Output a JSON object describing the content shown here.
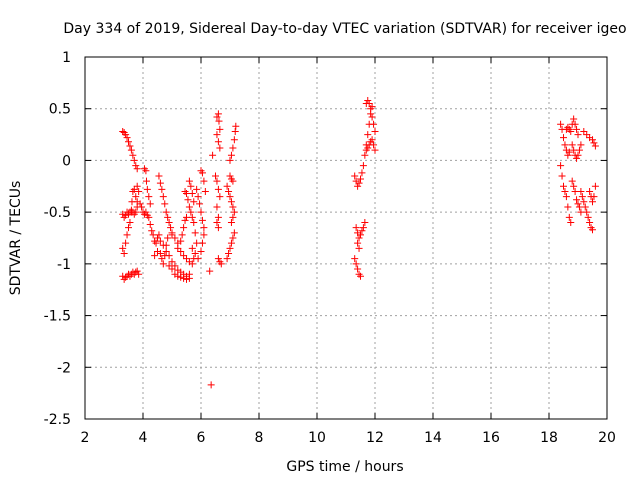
{
  "chart_data": {
    "type": "scatter",
    "title": "Day 334 of 2019, Sidereal Day-to-day VTEC variation (SDTVAR) for receiver igeo",
    "xlabel": "GPS time / hours",
    "ylabel": "SDTVAR / TECUs",
    "xlim": [
      2,
      20
    ],
    "ylim": [
      -2.5,
      1
    ],
    "xticks": [
      2,
      4,
      6,
      8,
      10,
      12,
      14,
      16,
      18,
      20
    ],
    "yticks": [
      -2.5,
      -2,
      -1.5,
      -1,
      -0.5,
      0,
      0.5,
      1
    ],
    "xtick_labels": [
      "2",
      "4",
      "6",
      "8",
      "10",
      "12",
      "14",
      "16",
      "18",
      "20"
    ],
    "ytick_labels": [
      "-2.5",
      "-2",
      "-1.5",
      "-1",
      "-0.5",
      "0",
      "0.5",
      "1"
    ],
    "grid": true,
    "marker": "+",
    "series": [
      {
        "name": "SDTVAR",
        "color": "#ff0000",
        "points": [
          [
            3.3,
            0.28
          ],
          [
            3.35,
            0.27
          ],
          [
            3.4,
            0.25
          ],
          [
            3.45,
            0.22
          ],
          [
            3.5,
            0.18
          ],
          [
            3.55,
            0.14
          ],
          [
            3.6,
            0.1
          ],
          [
            3.65,
            0.05
          ],
          [
            3.7,
            0.0
          ],
          [
            3.75,
            -0.05
          ],
          [
            3.8,
            -0.08
          ],
          [
            3.3,
            -0.52
          ],
          [
            3.35,
            -0.55
          ],
          [
            3.4,
            -0.53
          ],
          [
            3.45,
            -0.5
          ],
          [
            3.5,
            -0.52
          ],
          [
            3.55,
            -0.5
          ],
          [
            3.6,
            -0.48
          ],
          [
            3.65,
            -0.5
          ],
          [
            3.7,
            -0.52
          ],
          [
            3.75,
            -0.5
          ],
          [
            3.8,
            -0.45
          ],
          [
            3.3,
            -0.85
          ],
          [
            3.35,
            -0.9
          ],
          [
            3.4,
            -0.8
          ],
          [
            3.45,
            -0.72
          ],
          [
            3.5,
            -0.65
          ],
          [
            3.55,
            -0.6
          ],
          [
            3.6,
            -0.5
          ],
          [
            3.62,
            -0.4
          ],
          [
            3.65,
            -0.3
          ],
          [
            3.7,
            -0.28
          ],
          [
            3.75,
            -0.35
          ],
          [
            3.8,
            -0.4
          ],
          [
            3.3,
            -1.12
          ],
          [
            3.35,
            -1.15
          ],
          [
            3.4,
            -1.13
          ],
          [
            3.45,
            -1.12
          ],
          [
            3.5,
            -1.1
          ],
          [
            3.55,
            -1.12
          ],
          [
            3.6,
            -1.1
          ],
          [
            3.65,
            -1.08
          ],
          [
            3.7,
            -1.1
          ],
          [
            3.75,
            -1.08
          ],
          [
            3.8,
            -1.07
          ],
          [
            3.85,
            -1.1
          ],
          [
            3.8,
            -0.25
          ],
          [
            3.85,
            -0.3
          ],
          [
            3.9,
            -0.42
          ],
          [
            3.95,
            -0.45
          ],
          [
            4.0,
            -0.5
          ],
          [
            4.05,
            -0.52
          ],
          [
            4.1,
            -0.5
          ],
          [
            4.15,
            -0.53
          ],
          [
            4.05,
            -0.08
          ],
          [
            4.1,
            -0.1
          ],
          [
            4.12,
            -0.2
          ],
          [
            4.15,
            -0.28
          ],
          [
            4.2,
            -0.35
          ],
          [
            4.25,
            -0.42
          ],
          [
            4.2,
            -0.55
          ],
          [
            4.25,
            -0.62
          ],
          [
            4.3,
            -0.68
          ],
          [
            4.35,
            -0.72
          ],
          [
            4.4,
            -0.78
          ],
          [
            4.45,
            -0.8
          ],
          [
            4.5,
            -0.75
          ],
          [
            4.55,
            -0.72
          ],
          [
            4.6,
            -0.78
          ],
          [
            4.4,
            -0.92
          ],
          [
            4.5,
            -0.88
          ],
          [
            4.6,
            -0.9
          ],
          [
            4.65,
            -0.95
          ],
          [
            4.7,
            -1.0
          ],
          [
            4.75,
            -0.92
          ],
          [
            4.8,
            -0.82
          ],
          [
            4.85,
            -0.75
          ],
          [
            4.55,
            -0.15
          ],
          [
            4.6,
            -0.22
          ],
          [
            4.65,
            -0.28
          ],
          [
            4.7,
            -0.35
          ],
          [
            4.75,
            -0.42
          ],
          [
            4.8,
            -0.5
          ],
          [
            4.85,
            -0.55
          ],
          [
            4.9,
            -0.6
          ],
          [
            4.95,
            -0.65
          ],
          [
            5.0,
            -0.7
          ],
          [
            4.7,
            -0.82
          ],
          [
            4.8,
            -0.88
          ],
          [
            4.9,
            -0.92
          ],
          [
            5.0,
            -0.98
          ],
          [
            5.1,
            -1.02
          ],
          [
            5.2,
            -1.06
          ],
          [
            5.3,
            -1.08
          ],
          [
            5.4,
            -1.1
          ],
          [
            5.5,
            -1.12
          ],
          [
            5.6,
            -1.1
          ],
          [
            4.9,
            -1.02
          ],
          [
            5.0,
            -1.05
          ],
          [
            5.1,
            -1.1
          ],
          [
            5.2,
            -1.12
          ],
          [
            5.3,
            -1.13
          ],
          [
            5.4,
            -1.14
          ],
          [
            5.5,
            -1.15
          ],
          [
            5.6,
            -1.14
          ],
          [
            5.0,
            -0.72
          ],
          [
            5.1,
            -0.75
          ],
          [
            5.2,
            -0.8
          ],
          [
            5.3,
            -0.78
          ],
          [
            5.35,
            -0.72
          ],
          [
            5.4,
            -0.65
          ],
          [
            5.45,
            -0.58
          ],
          [
            5.5,
            -0.55
          ],
          [
            5.2,
            -0.85
          ],
          [
            5.3,
            -0.88
          ],
          [
            5.4,
            -0.92
          ],
          [
            5.5,
            -0.95
          ],
          [
            5.6,
            -0.98
          ],
          [
            5.7,
            -1.0
          ],
          [
            5.75,
            -0.95
          ],
          [
            5.45,
            -0.3
          ],
          [
            5.5,
            -0.32
          ],
          [
            5.55,
            -0.38
          ],
          [
            5.6,
            -0.45
          ],
          [
            5.65,
            -0.5
          ],
          [
            5.7,
            -0.55
          ],
          [
            5.75,
            -0.6
          ],
          [
            5.8,
            -0.7
          ],
          [
            5.85,
            -0.8
          ],
          [
            5.7,
            -0.85
          ],
          [
            5.8,
            -0.9
          ],
          [
            5.9,
            -0.95
          ],
          [
            6.0,
            -0.88
          ],
          [
            6.05,
            -0.8
          ],
          [
            6.1,
            -0.72
          ],
          [
            5.85,
            -0.28
          ],
          [
            5.9,
            -0.35
          ],
          [
            5.95,
            -0.42
          ],
          [
            6.0,
            -0.5
          ],
          [
            6.05,
            -0.58
          ],
          [
            6.1,
            -0.65
          ],
          [
            6.0,
            -0.1
          ],
          [
            6.05,
            -0.12
          ],
          [
            6.1,
            -0.2
          ],
          [
            6.15,
            -0.3
          ],
          [
            5.6,
            -0.2
          ],
          [
            5.65,
            -0.25
          ],
          [
            5.7,
            -0.32
          ],
          [
            5.75,
            -0.4
          ],
          [
            6.3,
            -1.07
          ],
          [
            6.35,
            -2.17
          ],
          [
            6.4,
            0.05
          ],
          [
            6.55,
            0.42
          ],
          [
            6.6,
            0.45
          ],
          [
            6.62,
            0.38
          ],
          [
            6.65,
            0.3
          ],
          [
            6.55,
            0.25
          ],
          [
            6.6,
            0.18
          ],
          [
            6.65,
            0.12
          ],
          [
            6.5,
            -0.15
          ],
          [
            6.55,
            -0.2
          ],
          [
            6.6,
            -0.28
          ],
          [
            6.65,
            -0.35
          ],
          [
            6.55,
            -0.45
          ],
          [
            6.6,
            -0.55
          ],
          [
            6.55,
            -0.6
          ],
          [
            6.6,
            -0.65
          ],
          [
            6.6,
            -0.95
          ],
          [
            6.65,
            -0.98
          ],
          [
            6.7,
            -1.0
          ],
          [
            6.9,
            -0.25
          ],
          [
            6.95,
            -0.3
          ],
          [
            7.0,
            -0.35
          ],
          [
            7.05,
            -0.4
          ],
          [
            7.1,
            -0.45
          ],
          [
            7.15,
            -0.5
          ],
          [
            7.1,
            -0.55
          ],
          [
            7.05,
            -0.6
          ],
          [
            6.9,
            -0.95
          ],
          [
            6.95,
            -0.9
          ],
          [
            7.0,
            -0.85
          ],
          [
            7.05,
            -0.8
          ],
          [
            7.1,
            -0.75
          ],
          [
            7.15,
            -0.7
          ],
          [
            7.0,
            0.0
          ],
          [
            7.05,
            0.05
          ],
          [
            7.1,
            0.12
          ],
          [
            7.15,
            0.2
          ],
          [
            7.18,
            0.28
          ],
          [
            7.2,
            0.33
          ],
          [
            7.0,
            -0.15
          ],
          [
            7.05,
            -0.18
          ],
          [
            7.1,
            -0.2
          ],
          [
            11.3,
            -0.15
          ],
          [
            11.35,
            -0.2
          ],
          [
            11.4,
            -0.25
          ],
          [
            11.45,
            -0.22
          ],
          [
            11.5,
            -0.18
          ],
          [
            11.55,
            -0.12
          ],
          [
            11.6,
            -0.05
          ],
          [
            11.65,
            0.05
          ],
          [
            11.7,
            0.15
          ],
          [
            11.75,
            0.25
          ],
          [
            11.8,
            0.35
          ],
          [
            11.85,
            0.45
          ],
          [
            11.9,
            0.52
          ],
          [
            11.35,
            -0.65
          ],
          [
            11.4,
            -0.7
          ],
          [
            11.45,
            -0.75
          ],
          [
            11.5,
            -0.72
          ],
          [
            11.55,
            -0.68
          ],
          [
            11.6,
            -0.65
          ],
          [
            11.65,
            -0.6
          ],
          [
            11.3,
            -0.95
          ],
          [
            11.35,
            -1.0
          ],
          [
            11.4,
            -1.05
          ],
          [
            11.45,
            -1.1
          ],
          [
            11.5,
            -1.12
          ],
          [
            11.4,
            -0.8
          ],
          [
            11.45,
            -0.85
          ],
          [
            11.7,
            0.1
          ],
          [
            11.75,
            0.12
          ],
          [
            11.8,
            0.15
          ],
          [
            11.85,
            0.18
          ],
          [
            11.9,
            0.2
          ],
          [
            11.95,
            0.15
          ],
          [
            12.0,
            0.1
          ],
          [
            11.7,
            0.55
          ],
          [
            11.75,
            0.58
          ],
          [
            11.8,
            0.55
          ],
          [
            11.85,
            0.5
          ],
          [
            11.9,
            0.42
          ],
          [
            11.95,
            0.35
          ],
          [
            12.0,
            0.28
          ],
          [
            18.4,
            0.35
          ],
          [
            18.45,
            0.3
          ],
          [
            18.5,
            0.22
          ],
          [
            18.55,
            0.15
          ],
          [
            18.6,
            0.1
          ],
          [
            18.65,
            0.05
          ],
          [
            18.7,
            0.08
          ],
          [
            18.6,
            0.3
          ],
          [
            18.65,
            0.32
          ],
          [
            18.7,
            0.3
          ],
          [
            18.75,
            0.28
          ],
          [
            18.8,
            0.35
          ],
          [
            18.85,
            0.4
          ],
          [
            18.9,
            0.35
          ],
          [
            18.95,
            0.3
          ],
          [
            19.0,
            0.25
          ],
          [
            18.8,
            0.15
          ],
          [
            18.85,
            0.1
          ],
          [
            18.9,
            0.05
          ],
          [
            18.95,
            0.02
          ],
          [
            19.0,
            0.05
          ],
          [
            19.05,
            0.1
          ],
          [
            19.1,
            0.15
          ],
          [
            19.2,
            0.28
          ],
          [
            19.3,
            0.25
          ],
          [
            19.4,
            0.22
          ],
          [
            19.5,
            0.2
          ],
          [
            19.55,
            0.17
          ],
          [
            19.6,
            0.14
          ],
          [
            18.4,
            -0.05
          ],
          [
            18.45,
            -0.15
          ],
          [
            18.5,
            -0.25
          ],
          [
            18.55,
            -0.3
          ],
          [
            18.6,
            -0.35
          ],
          [
            18.65,
            -0.45
          ],
          [
            18.7,
            -0.55
          ],
          [
            18.75,
            -0.6
          ],
          [
            18.8,
            -0.2
          ],
          [
            18.85,
            -0.25
          ],
          [
            18.9,
            -0.3
          ],
          [
            18.95,
            -0.38
          ],
          [
            19.0,
            -0.42
          ],
          [
            19.05,
            -0.45
          ],
          [
            19.1,
            -0.5
          ],
          [
            19.1,
            -0.3
          ],
          [
            19.15,
            -0.35
          ],
          [
            19.2,
            -0.4
          ],
          [
            19.25,
            -0.45
          ],
          [
            19.3,
            -0.5
          ],
          [
            19.35,
            -0.55
          ],
          [
            19.4,
            -0.6
          ],
          [
            19.45,
            -0.65
          ],
          [
            19.5,
            -0.67
          ],
          [
            19.4,
            -0.3
          ],
          [
            19.45,
            -0.35
          ],
          [
            19.5,
            -0.4
          ],
          [
            19.55,
            -0.35
          ],
          [
            19.6,
            -0.25
          ]
        ]
      }
    ]
  }
}
